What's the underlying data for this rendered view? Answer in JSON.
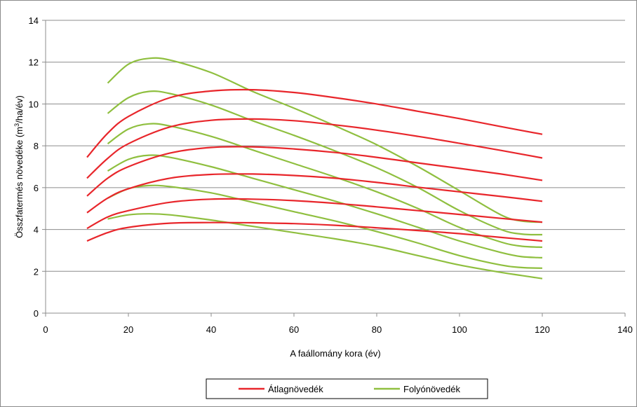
{
  "chart_data": {
    "type": "line",
    "xlabel": "A faállomány kora (év)",
    "ylabel_main": "Összfatermés növedéke (m",
    "ylabel_sup": "3",
    "ylabel_tail": "/ha/év)",
    "xlim": [
      0,
      140
    ],
    "ylim": [
      0,
      14
    ],
    "x_ticks": [
      0,
      20,
      40,
      60,
      80,
      100,
      120,
      140
    ],
    "y_ticks": [
      0,
      2,
      4,
      6,
      8,
      10,
      12,
      14
    ],
    "grid": "horizontal",
    "legend_position": "bottom-center",
    "legend": [
      "Átlagnövedék",
      "Folyónövedék"
    ],
    "colors": {
      "atlag": "#e8262b",
      "folyo": "#8fbf3f"
    },
    "series_atlag": [
      {
        "x": [
          10,
          15,
          20,
          30,
          40,
          50,
          60,
          70,
          80,
          90,
          100,
          110,
          120
        ],
        "y": [
          3.45,
          3.85,
          4.1,
          4.3,
          4.33,
          4.32,
          4.28,
          4.2,
          4.08,
          3.95,
          3.8,
          3.62,
          3.45
        ]
      },
      {
        "x": [
          10,
          15,
          20,
          30,
          40,
          50,
          60,
          70,
          80,
          90,
          100,
          110,
          120
        ],
        "y": [
          4.05,
          4.6,
          4.9,
          5.3,
          5.45,
          5.45,
          5.38,
          5.25,
          5.08,
          4.9,
          4.72,
          4.53,
          4.35
        ]
      },
      {
        "x": [
          10,
          15,
          20,
          30,
          40,
          50,
          60,
          70,
          80,
          90,
          100,
          110,
          120
        ],
        "y": [
          4.8,
          5.5,
          5.95,
          6.45,
          6.63,
          6.65,
          6.58,
          6.45,
          6.25,
          6.02,
          5.8,
          5.58,
          5.35
        ]
      },
      {
        "x": [
          10,
          15,
          20,
          30,
          40,
          50,
          60,
          70,
          80,
          90,
          100,
          110,
          120
        ],
        "y": [
          5.6,
          6.45,
          7.0,
          7.65,
          7.92,
          7.95,
          7.85,
          7.68,
          7.45,
          7.18,
          6.92,
          6.65,
          6.35
        ]
      },
      {
        "x": [
          10,
          15,
          20,
          30,
          40,
          50,
          60,
          70,
          80,
          90,
          100,
          110,
          120
        ],
        "y": [
          6.45,
          7.4,
          8.1,
          8.9,
          9.22,
          9.28,
          9.2,
          9.0,
          8.75,
          8.45,
          8.12,
          7.78,
          7.42
        ]
      },
      {
        "x": [
          10,
          15,
          20,
          30,
          40,
          50,
          60,
          70,
          80,
          90,
          100,
          110,
          120
        ],
        "y": [
          7.45,
          8.6,
          9.4,
          10.3,
          10.62,
          10.68,
          10.55,
          10.3,
          10.0,
          9.65,
          9.3,
          8.92,
          8.55
        ]
      }
    ],
    "series_folyo": [
      {
        "x": [
          15,
          20,
          25,
          30,
          40,
          50,
          60,
          70,
          80,
          90,
          100,
          110,
          115,
          120
        ],
        "y": [
          4.5,
          4.7,
          4.75,
          4.7,
          4.45,
          4.15,
          3.85,
          3.55,
          3.2,
          2.75,
          2.3,
          1.95,
          1.8,
          1.65
        ]
      },
      {
        "x": [
          15,
          20,
          25,
          30,
          40,
          50,
          60,
          70,
          80,
          90,
          100,
          110,
          115,
          120
        ],
        "y": [
          5.5,
          5.95,
          6.1,
          6.05,
          5.75,
          5.3,
          4.85,
          4.4,
          3.9,
          3.35,
          2.75,
          2.3,
          2.18,
          2.15
        ]
      },
      {
        "x": [
          15,
          20,
          25,
          30,
          40,
          50,
          60,
          70,
          80,
          90,
          100,
          110,
          115,
          120
        ],
        "y": [
          6.8,
          7.35,
          7.55,
          7.45,
          7.0,
          6.45,
          5.9,
          5.35,
          4.75,
          4.1,
          3.45,
          2.9,
          2.7,
          2.65
        ]
      },
      {
        "x": [
          15,
          20,
          25,
          30,
          40,
          50,
          60,
          70,
          80,
          90,
          100,
          110,
          115,
          120
        ],
        "y": [
          8.1,
          8.8,
          9.05,
          8.95,
          8.45,
          7.8,
          7.15,
          6.5,
          5.8,
          5.0,
          4.1,
          3.4,
          3.2,
          3.15
        ]
      },
      {
        "x": [
          15,
          20,
          25,
          30,
          40,
          50,
          60,
          70,
          80,
          90,
          100,
          110,
          115,
          120
        ],
        "y": [
          9.55,
          10.3,
          10.6,
          10.5,
          9.95,
          9.2,
          8.5,
          7.75,
          6.95,
          6.0,
          4.9,
          4.0,
          3.78,
          3.75
        ]
      },
      {
        "x": [
          15,
          20,
          25,
          30,
          40,
          50,
          60,
          70,
          80,
          90,
          100,
          110,
          115,
          120
        ],
        "y": [
          11.0,
          11.9,
          12.18,
          12.1,
          11.5,
          10.6,
          9.8,
          8.95,
          8.05,
          7.0,
          5.85,
          4.7,
          4.4,
          4.35
        ]
      }
    ]
  }
}
